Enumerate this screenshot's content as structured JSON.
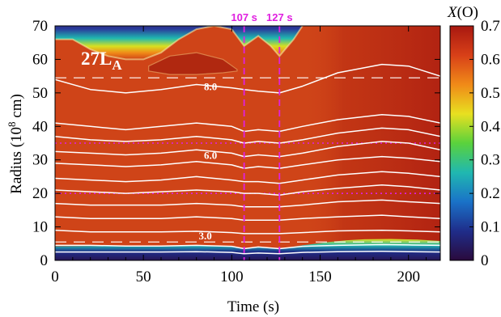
{
  "chart_data": {
    "type": "heatmap",
    "panel_label": "27L",
    "panel_label_sub": "A",
    "xlabel": "Time (s)",
    "ylabel": "Radius (10",
    "ylabel_sup": "8",
    "ylabel_tail": " cm)",
    "xlim": [
      0,
      218
    ],
    "ylim": [
      0,
      70
    ],
    "xticks": [
      0,
      50,
      100,
      150,
      200
    ],
    "yticks": [
      0,
      10,
      20,
      30,
      40,
      50,
      60,
      70
    ],
    "colorbar": {
      "label": "X(O)",
      "range": [
        0,
        0.7
      ],
      "ticks": [
        "0",
        "0.1",
        "0.2",
        "0.3",
        "0.4",
        "0.5",
        "0.6",
        "0.7"
      ],
      "colors": [
        "#2a0a3c",
        "#1f2d8a",
        "#1a72c8",
        "#20b8b0",
        "#5ad23c",
        "#e8e020",
        "#f08a18",
        "#d84018",
        "#a81810"
      ]
    },
    "background_color": "#cf4418",
    "vertical_markers": [
      {
        "x": 107,
        "label": "107 s",
        "color": "#e020e0"
      },
      {
        "x": 127,
        "label": "127 s",
        "color": "#e020e0"
      }
    ],
    "dashed_white_lines_y": [
      54.5,
      5.5
    ],
    "dotted_magenta_lines_y": [
      35,
      20
    ],
    "contour_labels": [
      {
        "x": 88,
        "y": 51.8,
        "text": "8.0"
      },
      {
        "x": 88,
        "y": 31.2,
        "text": "6.0"
      },
      {
        "x": 85,
        "y": 7.2,
        "text": "3.0"
      }
    ],
    "mass_contours": [
      {
        "x": [
          0,
          20,
          40,
          60,
          80,
          100,
          107,
          115,
          127,
          140,
          160,
          185,
          200,
          218
        ],
        "y": [
          54,
          51,
          50,
          51,
          52.5,
          51.5,
          51,
          50.5,
          50,
          52,
          56,
          58.5,
          58,
          55
        ]
      },
      {
        "x": [
          0,
          20,
          40,
          60,
          80,
          100,
          107,
          115,
          127,
          140,
          160,
          185,
          200,
          218
        ],
        "y": [
          41,
          40,
          39,
          40,
          41,
          40,
          38.5,
          39,
          38.5,
          40,
          42,
          43.5,
          43,
          41
        ]
      },
      {
        "x": [
          0,
          20,
          40,
          60,
          80,
          100,
          107,
          115,
          127,
          140,
          160,
          185,
          200,
          218
        ],
        "y": [
          37,
          36,
          35.5,
          36,
          37,
          36,
          35,
          35.5,
          35,
          36,
          38,
          39.5,
          39,
          37
        ]
      },
      {
        "x": [
          0,
          20,
          40,
          60,
          80,
          100,
          107,
          115,
          127,
          140,
          160,
          185,
          200,
          218
        ],
        "y": [
          32.5,
          32,
          31.5,
          32,
          33,
          32,
          31,
          31.5,
          31,
          32,
          34,
          35.5,
          35,
          33
        ]
      },
      {
        "x": [
          0,
          20,
          40,
          60,
          80,
          100,
          107,
          115,
          127,
          140,
          160,
          185,
          200,
          218
        ],
        "y": [
          29,
          28.5,
          28,
          28.5,
          29.5,
          28.5,
          27.5,
          28,
          27.5,
          28.5,
          30,
          31,
          30.5,
          29.5
        ]
      },
      {
        "x": [
          0,
          20,
          40,
          60,
          80,
          100,
          107,
          115,
          127,
          140,
          160,
          185,
          200,
          218
        ],
        "y": [
          24.5,
          24,
          23.5,
          24,
          25,
          24,
          23.5,
          23.5,
          23,
          24,
          25.5,
          26.5,
          26,
          25
        ]
      },
      {
        "x": [
          0,
          20,
          40,
          60,
          80,
          100,
          107,
          115,
          127,
          140,
          160,
          185,
          200,
          218
        ],
        "y": [
          21,
          20.5,
          20,
          20.5,
          21,
          20.5,
          20,
          20,
          19.5,
          20.5,
          21.5,
          22.5,
          22,
          21
        ]
      },
      {
        "x": [
          0,
          20,
          40,
          60,
          80,
          100,
          107,
          115,
          127,
          140,
          160,
          185,
          200,
          218
        ],
        "y": [
          17,
          16.5,
          16.5,
          16.5,
          17,
          16.5,
          16,
          16,
          16,
          16.5,
          17.5,
          18,
          17.5,
          17
        ]
      },
      {
        "x": [
          0,
          20,
          40,
          60,
          80,
          100,
          107,
          115,
          127,
          140,
          160,
          185,
          200,
          218
        ],
        "y": [
          13,
          12.5,
          12.5,
          12.5,
          13,
          12.5,
          12,
          12,
          12,
          12.5,
          13,
          13.5,
          13,
          12.5
        ]
      },
      {
        "x": [
          0,
          20,
          40,
          60,
          80,
          100,
          107,
          115,
          127,
          140,
          160,
          185,
          200,
          218
        ],
        "y": [
          9,
          8.5,
          8.5,
          8.5,
          8.7,
          8.3,
          8,
          8,
          8,
          8.3,
          8.8,
          9,
          8.8,
          8.5
        ]
      },
      {
        "x": [
          0,
          20,
          40,
          60,
          80,
          100,
          107,
          115,
          127,
          140,
          160,
          185,
          200,
          218
        ],
        "y": [
          4.5,
          4.5,
          4.3,
          4.3,
          4.5,
          4.2,
          3.5,
          4,
          3.5,
          4.2,
          4.5,
          4.7,
          4.6,
          4.5
        ]
      },
      {
        "x": [
          0,
          20,
          40,
          60,
          80,
          100,
          107,
          115,
          127,
          140,
          160,
          185,
          200,
          218
        ],
        "y": [
          2.5,
          2.5,
          2.5,
          2.5,
          2.6,
          2.4,
          2,
          2.2,
          2,
          2.4,
          2.6,
          2.7,
          2.6,
          2.5
        ]
      }
    ],
    "upper_boundary": {
      "x": [
        0,
        10,
        20,
        30,
        40,
        50,
        60,
        70,
        80,
        90,
        100,
        107,
        115,
        122,
        127,
        135,
        140,
        150,
        160,
        218
      ],
      "y": [
        66,
        66,
        63,
        61,
        60,
        60,
        62,
        66,
        69,
        70,
        69,
        64,
        67,
        64,
        61,
        66,
        70,
        73,
        74,
        74
      ]
    },
    "shell_bubble": {
      "x": [
        53,
        65,
        80,
        95,
        103
      ],
      "y_top": [
        58,
        61,
        62,
        60,
        57
      ],
      "y_bottom": [
        56.5,
        55.5,
        55.5,
        56,
        56.5
      ]
    },
    "core": {
      "x": [
        0,
        20,
        40,
        60,
        80,
        100,
        107,
        115,
        127,
        140,
        155,
        165,
        175,
        190,
        205,
        218
      ],
      "y": [
        4.2,
        4.3,
        4.2,
        4.2,
        4.4,
        4.2,
        3.5,
        4,
        3.5,
        4.5,
        5.5,
        6,
        6.3,
        6.4,
        6.2,
        5.8
      ]
    }
  }
}
